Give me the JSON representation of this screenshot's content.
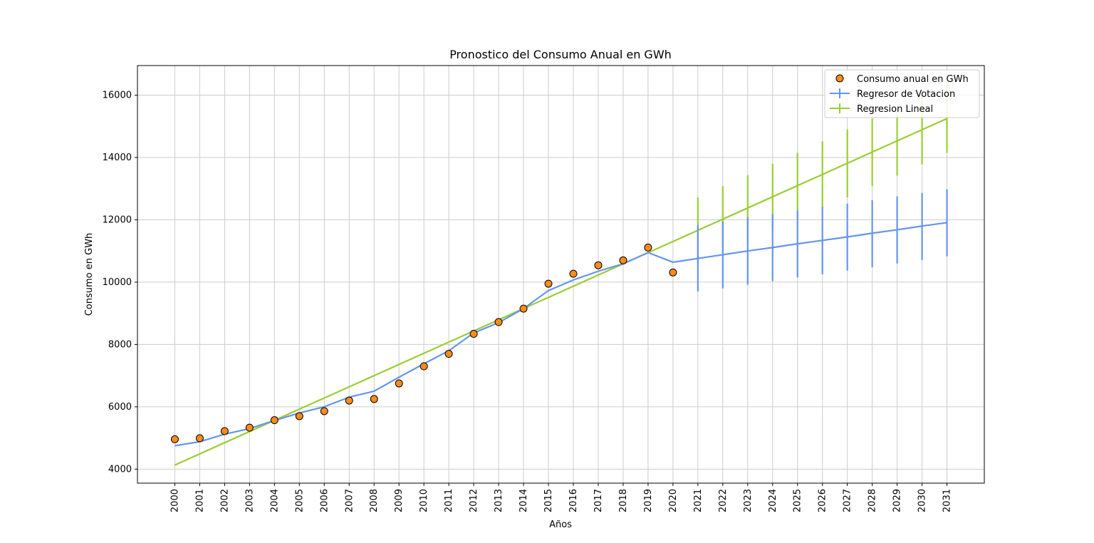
{
  "chart_data": {
    "type": "line",
    "title": "Pronostico del Consumo Anual en GWh",
    "xlabel": "Años",
    "ylabel": "Consumo en GWh",
    "xlim": [
      1998.5,
      2032.5
    ],
    "ylim": [
      3550,
      16950
    ],
    "x_ticks": [
      2000,
      2001,
      2002,
      2003,
      2004,
      2005,
      2006,
      2007,
      2008,
      2009,
      2010,
      2011,
      2012,
      2013,
      2014,
      2015,
      2016,
      2017,
      2018,
      2019,
      2020,
      2021,
      2022,
      2023,
      2024,
      2025,
      2026,
      2027,
      2028,
      2029,
      2030,
      2031
    ],
    "y_ticks": [
      4000,
      6000,
      8000,
      10000,
      12000,
      14000,
      16000
    ],
    "grid": true,
    "legend_position": "top-right",
    "colors": {
      "scatter_fill": "#ff8c1a",
      "scatter_edge": "#000000",
      "votacion": "#6495ed",
      "lineal": "#9acd32",
      "grid": "#cccccc"
    },
    "series": [
      {
        "name": "Consumo anual en GWh",
        "kind": "scatter",
        "x": [
          2000,
          2001,
          2002,
          2003,
          2004,
          2005,
          2006,
          2007,
          2008,
          2009,
          2010,
          2011,
          2012,
          2013,
          2014,
          2015,
          2016,
          2017,
          2018,
          2019,
          2020
        ],
        "values": [
          4960,
          4990,
          5220,
          5330,
          5570,
          5700,
          5860,
          6200,
          6250,
          6750,
          7300,
          7700,
          8340,
          8720,
          9150,
          9950,
          10270,
          10540,
          10700,
          11110,
          10310
        ]
      },
      {
        "name": "Regresor de Votacion",
        "kind": "line",
        "x": [
          2000,
          2001,
          2002,
          2003,
          2004,
          2005,
          2006,
          2007,
          2008,
          2009,
          2010,
          2011,
          2012,
          2013,
          2014,
          2015,
          2016,
          2017,
          2018,
          2019,
          2020,
          2021,
          2022,
          2023,
          2024,
          2025,
          2026,
          2027,
          2028,
          2029,
          2030,
          2031
        ],
        "values": [
          4750,
          4880,
          5120,
          5300,
          5560,
          5800,
          6000,
          6310,
          6500,
          6950,
          7380,
          7800,
          8370,
          8700,
          9150,
          9730,
          10070,
          10350,
          10590,
          10950,
          10640,
          10760,
          10880,
          11000,
          11110,
          11230,
          11340,
          11450,
          11570,
          11680,
          11800,
          11910
        ],
        "error_x": [
          2021,
          2022,
          2023,
          2024,
          2025,
          2026,
          2027,
          2028,
          2029,
          2030,
          2031
        ],
        "error_low": [
          9700,
          9800,
          9920,
          10030,
          10150,
          10250,
          10370,
          10480,
          10600,
          10710,
          10830
        ],
        "error_high": [
          11830,
          11950,
          12080,
          12190,
          12300,
          12410,
          12520,
          12630,
          12750,
          12860,
          12980
        ]
      },
      {
        "name": "Regresion Lineal",
        "kind": "line",
        "x": [
          2000,
          2031
        ],
        "values": [
          4130,
          15250
        ],
        "error_x": [
          2021,
          2022,
          2023,
          2024,
          2025,
          2026,
          2027,
          2028,
          2029,
          2030,
          2031
        ],
        "error_low": [
          10600,
          10950,
          11300,
          11650,
          12000,
          12380,
          12720,
          13080,
          13420,
          13780,
          14150
        ],
        "error_high": [
          12720,
          13080,
          13430,
          13800,
          14150,
          14520,
          14900,
          15250,
          15600,
          15970,
          16320
        ]
      }
    ]
  }
}
